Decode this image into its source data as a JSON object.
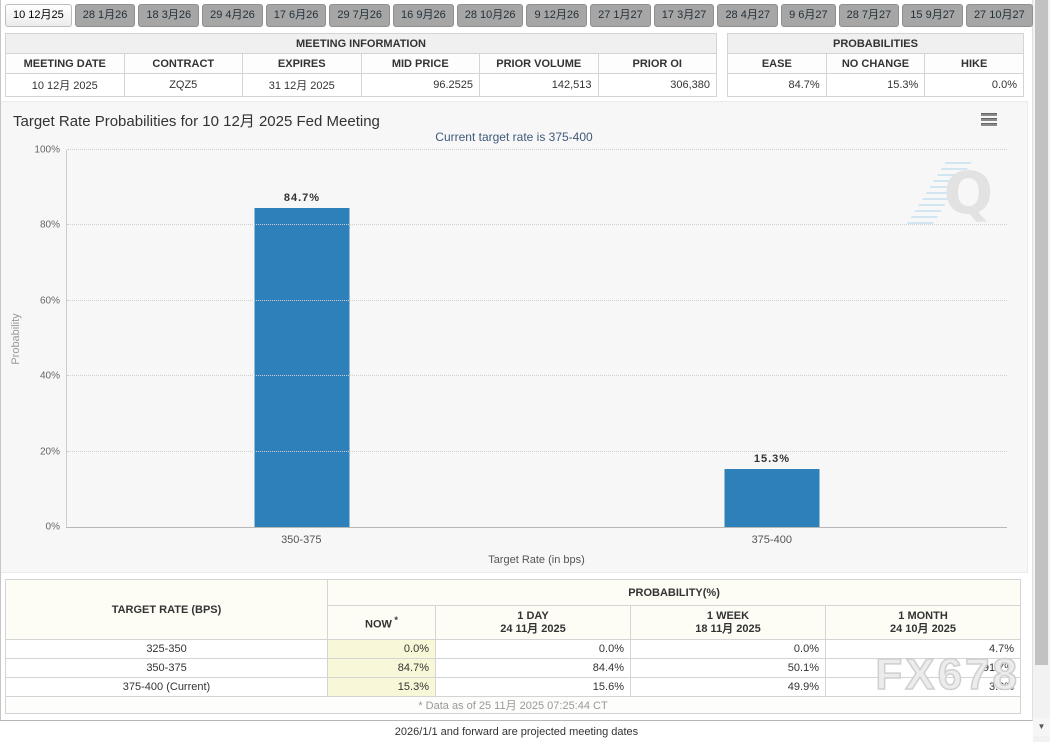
{
  "tabs": {
    "items": [
      {
        "label": "10 12月25",
        "active": true
      },
      {
        "label": "28 1月26",
        "active": false
      },
      {
        "label": "18 3月26",
        "active": false
      },
      {
        "label": "29 4月26",
        "active": false
      },
      {
        "label": "17 6月26",
        "active": false
      },
      {
        "label": "29 7月26",
        "active": false
      },
      {
        "label": "16 9月26",
        "active": false
      },
      {
        "label": "28 10月26",
        "active": false
      },
      {
        "label": "9 12月26",
        "active": false
      },
      {
        "label": "27 1月27",
        "active": false
      },
      {
        "label": "17 3月27",
        "active": false
      },
      {
        "label": "28 4月27",
        "active": false
      },
      {
        "label": "9 6月27",
        "active": false
      },
      {
        "label": "28 7月27",
        "active": false
      },
      {
        "label": "15 9月27",
        "active": false
      },
      {
        "label": "27 10月27",
        "active": false
      }
    ]
  },
  "meeting_info": {
    "title": "MEETING INFORMATION",
    "columns": [
      "MEETING DATE",
      "CONTRACT",
      "EXPIRES",
      "MID PRICE",
      "PRIOR VOLUME",
      "PRIOR OI"
    ],
    "aligns": [
      "center",
      "center",
      "center",
      "right",
      "right",
      "right"
    ],
    "widths": [
      "150px",
      "105px",
      "120px",
      "105px",
      "145px",
      "87px"
    ],
    "values": [
      "10 12月 2025",
      "ZQZ5",
      "31 12月 2025",
      "96.2525",
      "142,513",
      "306,380"
    ]
  },
  "probabilities": {
    "title": "PROBABILITIES",
    "columns": [
      "EASE",
      "NO CHANGE",
      "HIKE"
    ],
    "aligns": [
      "right",
      "right",
      "right"
    ],
    "widths": [
      "80px",
      "131px",
      "86px"
    ],
    "values": [
      "84.7%",
      "15.3%",
      "0.0%"
    ]
  },
  "chart": {
    "title": "Target Rate Probabilities for 10 12月 2025 Fed Meeting",
    "subtitle": "Current target rate is 375-400",
    "ylabel": "Probability",
    "xlabel": "Target Rate (in bps)",
    "menu_icon": "hamburger-icon"
  },
  "chart_data": {
    "type": "bar",
    "title": "Target Rate Probabilities for 10 12月 2025 Fed Meeting",
    "subtitle": "Current target rate is 375-400",
    "xlabel": "Target Rate (in bps)",
    "ylabel": "Probability",
    "categories": [
      "350-375",
      "375-400"
    ],
    "values": [
      84.7,
      15.3
    ],
    "data_labels": [
      "84.7%",
      "15.3%"
    ],
    "ylim": [
      0,
      100
    ],
    "yticks": [
      "0%",
      "20%",
      "40%",
      "60%",
      "80%",
      "100%"
    ],
    "grid": "dotted-horizontal",
    "legend": "none",
    "bar_color": "#2d80b9"
  },
  "prob_table": {
    "col1_header": "TARGET RATE (BPS)",
    "group_header": "PROBABILITY(%)",
    "sub_columns": [
      {
        "label": "NOW",
        "sup": "*",
        "sub": ""
      },
      {
        "label": "1 DAY",
        "sup": "",
        "sub": "24 11月 2025"
      },
      {
        "label": "1 WEEK",
        "sup": "",
        "sub": "18 11月 2025"
      },
      {
        "label": "1 MONTH",
        "sup": "",
        "sub": "24 10月 2025"
      }
    ],
    "rows": [
      {
        "rate": "325-350",
        "values": [
          "0.0%",
          "0.0%",
          "0.0%",
          "4.7%"
        ]
      },
      {
        "rate": "350-375",
        "values": [
          "84.7%",
          "84.4%",
          "50.1%",
          "91.7%"
        ]
      },
      {
        "rate": "375-400 (Current)",
        "values": [
          "15.3%",
          "15.6%",
          "49.9%",
          "3.6%"
        ]
      }
    ],
    "footnote": "* Data as of 25 11月 2025 07:25:44 CT"
  },
  "footnotes": {
    "projected": "2026/1/1 and forward are projected meeting dates"
  },
  "watermarks": {
    "chart_logo": "Q",
    "fx678": "FX678"
  },
  "colors": {
    "bar": "#2d80b9",
    "now_column_bg": "#f8f8d8",
    "active_tab_bg": "#f5f5f5",
    "inactive_tab_bg": "#a6a6a6",
    "subtitle_text": "#3e5a7a"
  }
}
